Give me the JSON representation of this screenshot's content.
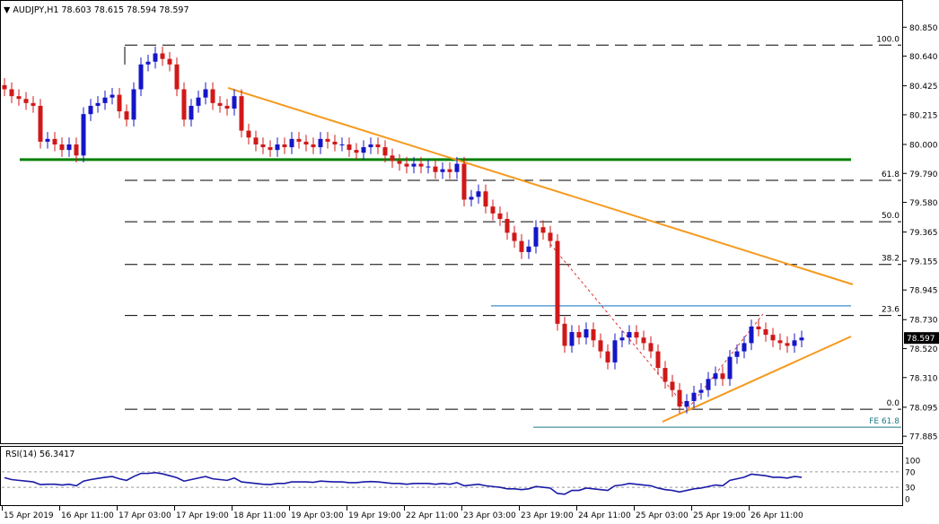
{
  "chart_data": {
    "type": "candlestick",
    "symbol_header": "AUDJPY,H1",
    "ohlc_header": "78.603 78.615 78.594 78.597",
    "current_price": "78.597",
    "y_ticks": [
      "80.850",
      "80.640",
      "80.425",
      "80.215",
      "80.000",
      "79.790",
      "79.580",
      "79.365",
      "79.155",
      "78.945",
      "78.730",
      "78.520",
      "78.310",
      "78.095",
      "77.885"
    ],
    "x_ticks": [
      "15 Apr 2019",
      "16 Apr 11:00",
      "17 Apr 03:00",
      "17 Apr 19:00",
      "18 Apr 11:00",
      "19 Apr 03:00",
      "19 Apr 19:00",
      "22 Apr 11:00",
      "23 Apr 03:00",
      "23 Apr 19:00",
      "24 Apr 11:00",
      "25 Apr 03:00",
      "25 Apr 19:00",
      "26 Apr 11:00"
    ],
    "ylim": [
      77.86,
      80.93
    ],
    "fib_levels": [
      {
        "label": "100.0",
        "value": 80.72
      },
      {
        "label": "61.8",
        "value": 79.74
      },
      {
        "label": "50.0",
        "value": 79.44
      },
      {
        "label": "38.2",
        "value": 79.13
      },
      {
        "label": "23.6",
        "value": 78.76
      },
      {
        "label": "0.0",
        "value": 78.08
      }
    ],
    "fe_level": {
      "label": "FE 61.8",
      "value": 77.95
    },
    "support_level": 79.89,
    "resistance_level": 78.83,
    "candles_x": [
      2,
      10,
      18,
      26,
      34,
      42,
      50,
      58,
      66,
      74,
      82,
      90,
      98,
      106,
      114,
      122,
      130,
      138,
      146,
      154,
      162,
      170,
      178,
      186,
      194,
      202,
      210,
      218,
      226,
      234,
      242,
      250,
      258,
      266,
      274,
      282,
      290,
      298,
      306,
      314,
      322,
      330,
      338,
      346,
      354,
      362,
      370,
      378,
      386,
      394,
      402,
      410,
      418,
      426,
      434,
      442,
      450,
      458,
      466,
      474,
      482,
      490,
      498,
      506,
      514,
      522,
      530,
      538,
      546,
      554,
      562,
      570,
      578,
      586,
      594,
      602,
      610,
      618,
      626,
      634,
      642,
      650,
      658,
      666,
      674,
      682,
      690,
      698,
      706,
      714,
      722,
      730,
      738,
      746,
      754,
      762,
      770,
      778,
      786,
      794,
      802,
      810,
      818,
      826,
      834,
      842,
      850,
      858,
      866,
      874,
      882,
      890
    ],
    "candles_close": [
      80.4,
      80.35,
      80.33,
      80.3,
      80.28,
      80.02,
      80.04,
      80.0,
      79.96,
      80.0,
      79.92,
      80.22,
      80.28,
      80.3,
      80.34,
      80.36,
      80.24,
      80.18,
      80.4,
      80.58,
      80.6,
      80.66,
      80.62,
      80.58,
      80.4,
      80.18,
      80.28,
      80.34,
      80.4,
      80.3,
      80.28,
      80.26,
      80.35,
      80.1,
      80.05,
      80.0,
      79.98,
      79.96,
      80.0,
      79.98,
      80.04,
      80.02,
      80.0,
      79.98,
      80.04,
      80.02,
      80.0,
      80.0,
      79.96,
      79.94,
      79.98,
      80.0,
      79.98,
      79.92,
      79.88,
      79.86,
      79.84,
      79.86,
      79.84,
      79.84,
      79.8,
      79.82,
      79.8,
      79.86,
      79.6,
      79.62,
      79.66,
      79.55,
      79.5,
      79.46,
      79.36,
      79.3,
      79.22,
      79.26,
      79.4,
      79.36,
      79.3,
      78.7,
      78.54,
      78.64,
      78.6,
      78.66,
      78.58,
      78.5,
      78.42,
      78.58,
      78.6,
      78.64,
      78.6,
      78.56,
      78.5,
      78.38,
      78.28,
      78.22,
      78.1,
      78.14,
      78.2,
      78.22,
      78.3,
      78.34,
      78.3,
      78.46,
      78.5,
      78.56,
      78.68,
      78.66,
      78.62,
      78.58,
      78.56,
      78.54,
      78.58,
      78.6
    ],
    "rsi": {
      "label": "RSI(14) 56.3417",
      "levels": [
        70,
        30
      ],
      "ticks": [
        "100",
        "70",
        "30",
        "0"
      ],
      "values": [
        55,
        50,
        48,
        46,
        44,
        37,
        38,
        38,
        36,
        38,
        34,
        46,
        50,
        53,
        56,
        58,
        52,
        48,
        58,
        66,
        66,
        68,
        65,
        60,
        55,
        46,
        50,
        54,
        58,
        52,
        50,
        48,
        54,
        44,
        42,
        40,
        38,
        37,
        40,
        40,
        44,
        44,
        44,
        43,
        46,
        45,
        44,
        44,
        42,
        42,
        44,
        45,
        44,
        42,
        40,
        40,
        38,
        40,
        40,
        40,
        38,
        40,
        38,
        42,
        34,
        36,
        38,
        34,
        32,
        30,
        26,
        26,
        24,
        26,
        32,
        30,
        28,
        14,
        12,
        22,
        22,
        28,
        26,
        24,
        22,
        34,
        36,
        40,
        38,
        36,
        34,
        28,
        24,
        22,
        18,
        22,
        26,
        28,
        32,
        36,
        34,
        48,
        52,
        56,
        64,
        62,
        60,
        56,
        56,
        54,
        58,
        56
      ]
    }
  }
}
